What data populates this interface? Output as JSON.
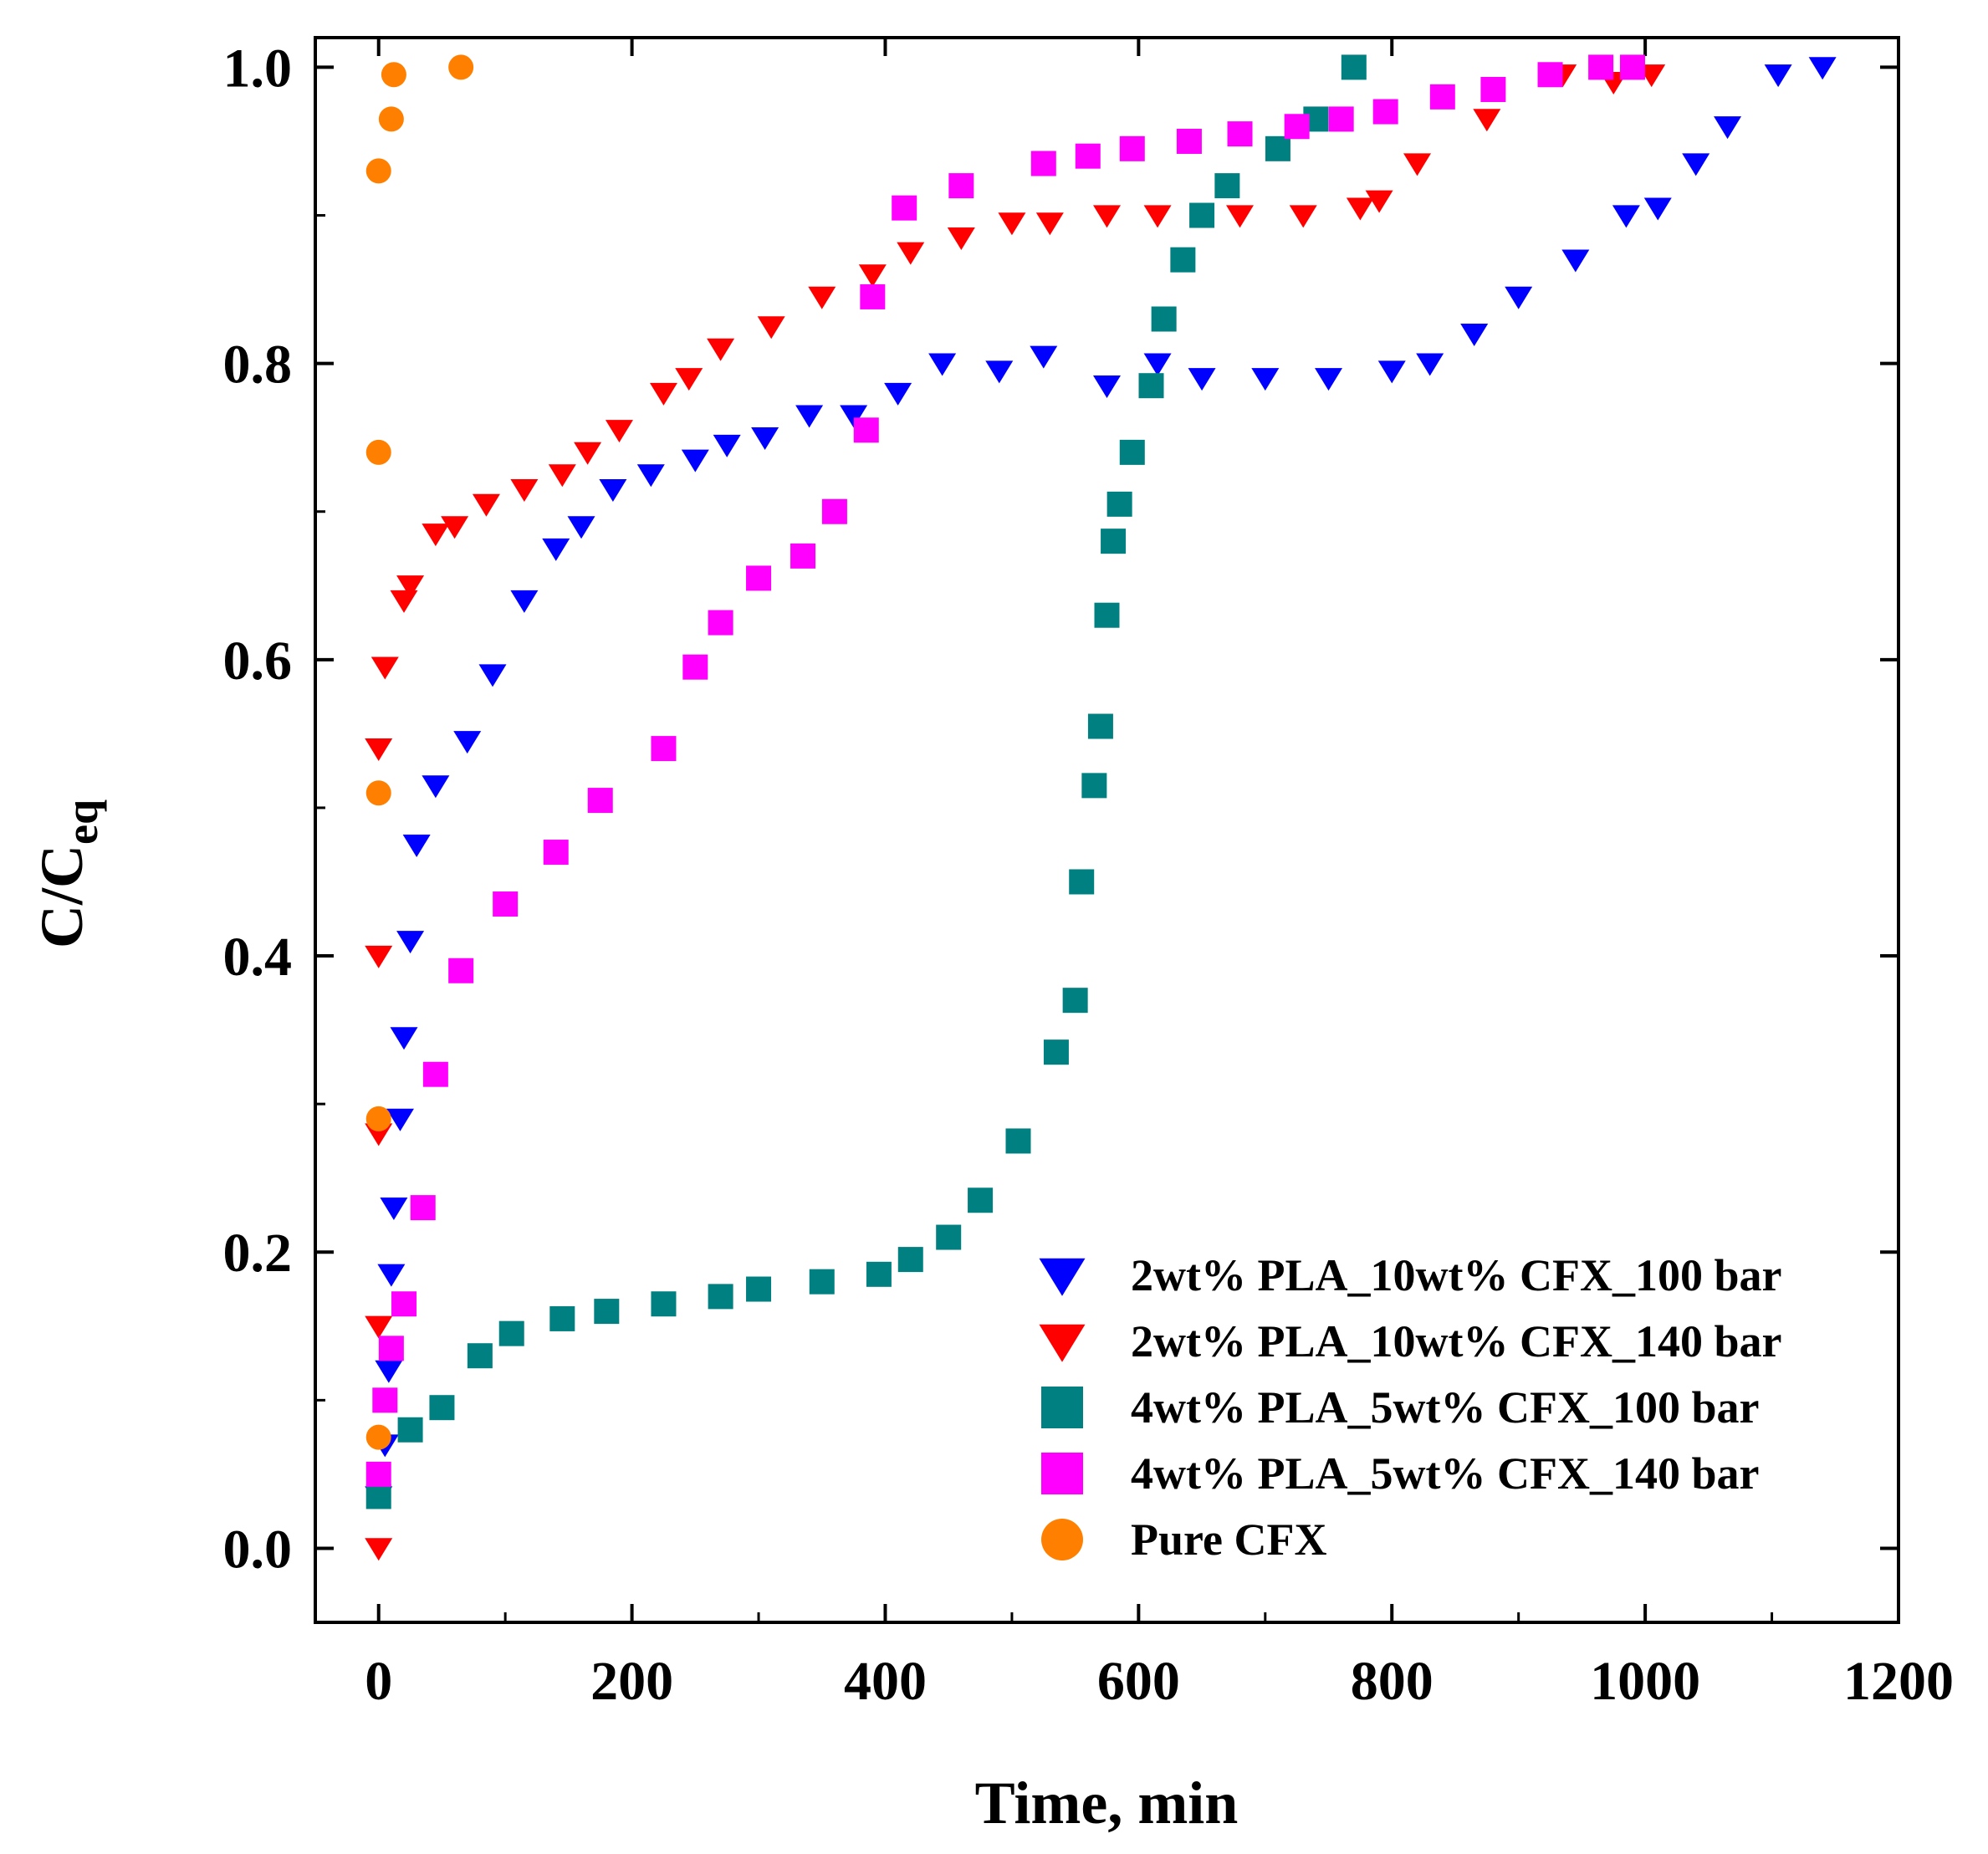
{
  "chart_data": {
    "type": "scatter",
    "title": "",
    "xlabel": "Time, min",
    "ylabel_main": "C/C",
    "ylabel_sub": "eq",
    "xlim": [
      -50,
      1200
    ],
    "ylim": [
      -0.05,
      1.02
    ],
    "xticks": [
      0,
      200,
      400,
      600,
      800,
      1000,
      1200
    ],
    "xtick_labels": [
      "0",
      "200",
      "400",
      "600",
      "800",
      "1000",
      "1200"
    ],
    "xminor": [
      100,
      300,
      500,
      700,
      900,
      1100
    ],
    "yticks": [
      0.0,
      0.2,
      0.4,
      0.6,
      0.8,
      1.0
    ],
    "ytick_labels": [
      "0.0",
      "0.2",
      "0.4",
      "0.6",
      "0.8",
      "1.0"
    ],
    "yminor": [
      0.1,
      0.3,
      0.5,
      0.7,
      0.9
    ],
    "grid": false,
    "legend_position": "bottom-right",
    "series": [
      {
        "name": "2wt% PLA_10wt% CFX_100 bar",
        "color": "#0000ff",
        "marker": "triangle-down",
        "x": [
          0,
          5,
          8,
          10,
          12,
          17,
          20,
          25,
          30,
          45,
          70,
          90,
          115,
          140,
          160,
          185,
          215,
          250,
          275,
          305,
          340,
          375,
          410,
          445,
          490,
          525,
          575,
          615,
          650,
          700,
          750,
          800,
          830,
          865,
          900,
          945,
          985,
          1010,
          1040,
          1065,
          1105,
          1140
        ],
        "y": [
          0.035,
          0.07,
          0.12,
          0.185,
          0.23,
          0.29,
          0.345,
          0.41,
          0.475,
          0.515,
          0.545,
          0.59,
          0.64,
          0.675,
          0.69,
          0.715,
          0.725,
          0.735,
          0.745,
          0.75,
          0.765,
          0.765,
          0.78,
          0.8,
          0.795,
          0.805,
          0.785,
          0.8,
          0.79,
          0.79,
          0.79,
          0.795,
          0.8,
          0.82,
          0.845,
          0.87,
          0.9,
          0.905,
          0.935,
          0.96,
          0.995,
          1.0
        ]
      },
      {
        "name": "2wt% PLA_10wt% CFX_140 bar",
        "color": "#ff0000",
        "marker": "triangle-down",
        "x": [
          0,
          0,
          0,
          0,
          0,
          5,
          20,
          25,
          45,
          60,
          85,
          115,
          145,
          165,
          190,
          225,
          245,
          270,
          310,
          350,
          390,
          420,
          460,
          500,
          530,
          575,
          615,
          680,
          730,
          775,
          790,
          820,
          875,
          935,
          975,
          1005
        ],
        "y": [
          0.0,
          0.15,
          0.28,
          0.4,
          0.54,
          0.595,
          0.64,
          0.65,
          0.685,
          0.69,
          0.705,
          0.715,
          0.725,
          0.74,
          0.755,
          0.78,
          0.79,
          0.81,
          0.825,
          0.845,
          0.86,
          0.875,
          0.885,
          0.895,
          0.895,
          0.9,
          0.9,
          0.9,
          0.9,
          0.905,
          0.91,
          0.935,
          0.965,
          0.995,
          0.99,
          0.995
        ]
      },
      {
        "name": "4wt% PLA_5wt% CFX_100 bar",
        "color": "#008080",
        "marker": "square",
        "x": [
          0,
          25,
          50,
          80,
          105,
          145,
          180,
          225,
          270,
          300,
          350,
          395,
          420,
          450,
          475,
          505,
          535,
          550,
          555,
          565,
          570,
          575,
          580,
          585,
          595,
          610,
          620,
          635,
          650,
          670,
          710,
          740,
          770
        ],
        "y": [
          0.035,
          0.08,
          0.095,
          0.13,
          0.145,
          0.155,
          0.16,
          0.165,
          0.17,
          0.175,
          0.18,
          0.185,
          0.195,
          0.21,
          0.235,
          0.275,
          0.335,
          0.37,
          0.45,
          0.515,
          0.555,
          0.63,
          0.68,
          0.705,
          0.74,
          0.785,
          0.83,
          0.87,
          0.9,
          0.92,
          0.945,
          0.965,
          1.0
        ]
      },
      {
        "name": "4wt% PLA_5wt% CFX_140 bar",
        "color": "#ff00ff",
        "marker": "square",
        "x": [
          0,
          5,
          10,
          20,
          35,
          45,
          65,
          100,
          140,
          175,
          225,
          250,
          270,
          300,
          335,
          360,
          385,
          390,
          415,
          460,
          525,
          560,
          595,
          640,
          680,
          725,
          760,
          795,
          840,
          880,
          925,
          965,
          990
        ],
        "y": [
          0.05,
          0.1,
          0.135,
          0.165,
          0.23,
          0.32,
          0.39,
          0.435,
          0.47,
          0.505,
          0.54,
          0.595,
          0.625,
          0.655,
          0.67,
          0.7,
          0.755,
          0.845,
          0.905,
          0.92,
          0.935,
          0.94,
          0.945,
          0.95,
          0.955,
          0.96,
          0.965,
          0.97,
          0.98,
          0.985,
          0.995,
          1.0,
          1.0
        ]
      },
      {
        "name": "Pure CFX",
        "color": "#ff8000",
        "marker": "circle",
        "x": [
          0,
          0,
          0,
          0,
          0,
          10,
          12,
          65
        ],
        "y": [
          0.075,
          0.29,
          0.51,
          0.74,
          0.93,
          0.965,
          0.995,
          1.0
        ]
      }
    ]
  }
}
